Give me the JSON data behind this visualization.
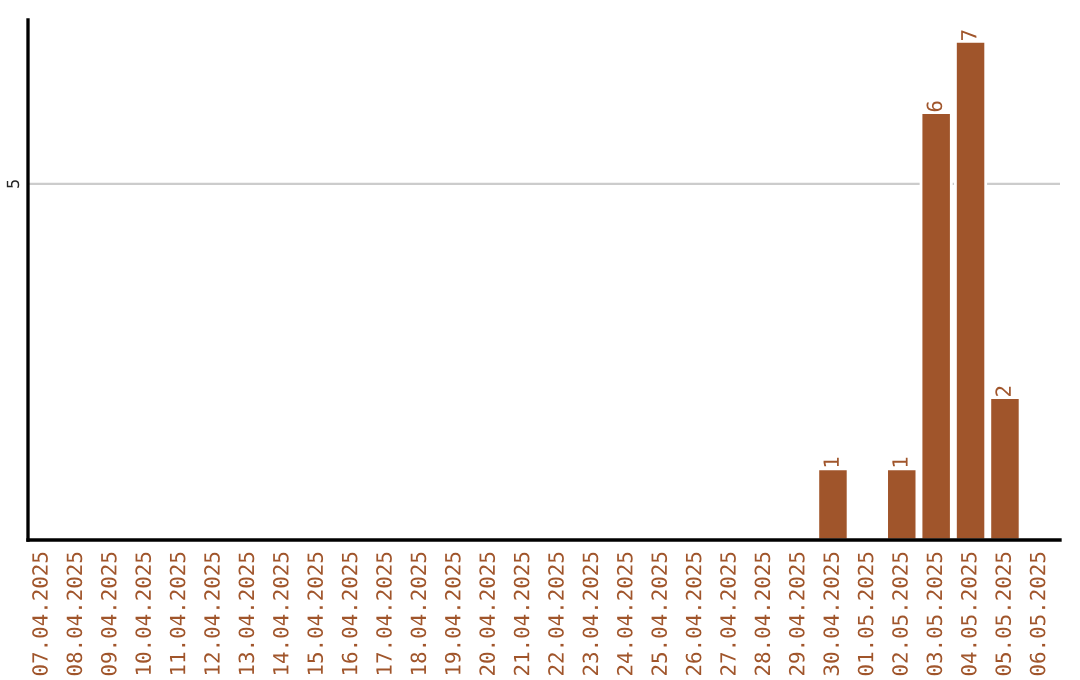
{
  "chart_data": {
    "type": "bar",
    "categories": [
      "07.04.2025",
      "08.04.2025",
      "09.04.2025",
      "10.04.2025",
      "11.04.2025",
      "12.04.2025",
      "13.04.2025",
      "14.04.2025",
      "15.04.2025",
      "16.04.2025",
      "17.04.2025",
      "18.04.2025",
      "19.04.2025",
      "20.04.2025",
      "21.04.2025",
      "22.04.2025",
      "23.04.2025",
      "24.04.2025",
      "25.04.2025",
      "26.04.2025",
      "27.04.2025",
      "28.04.2025",
      "29.04.2025",
      "30.04.2025",
      "01.05.2025",
      "02.05.2025",
      "03.05.2025",
      "04.05.2025",
      "05.05.2025",
      "06.05.2025"
    ],
    "values": [
      null,
      null,
      null,
      null,
      null,
      null,
      null,
      null,
      null,
      null,
      null,
      null,
      null,
      null,
      null,
      null,
      null,
      null,
      null,
      null,
      null,
      null,
      null,
      1,
      null,
      1,
      6,
      7,
      2,
      null
    ],
    "value_labels": [
      null,
      null,
      null,
      null,
      null,
      null,
      null,
      null,
      null,
      null,
      null,
      null,
      null,
      null,
      null,
      null,
      null,
      null,
      null,
      null,
      null,
      null,
      null,
      "1",
      null,
      "1",
      "6",
      "7",
      "2",
      null
    ],
    "color": "#a0552b",
    "ylim": [
      0,
      7.3
    ],
    "yticks": [
      5
    ],
    "grid": "y",
    "legend": false
  }
}
